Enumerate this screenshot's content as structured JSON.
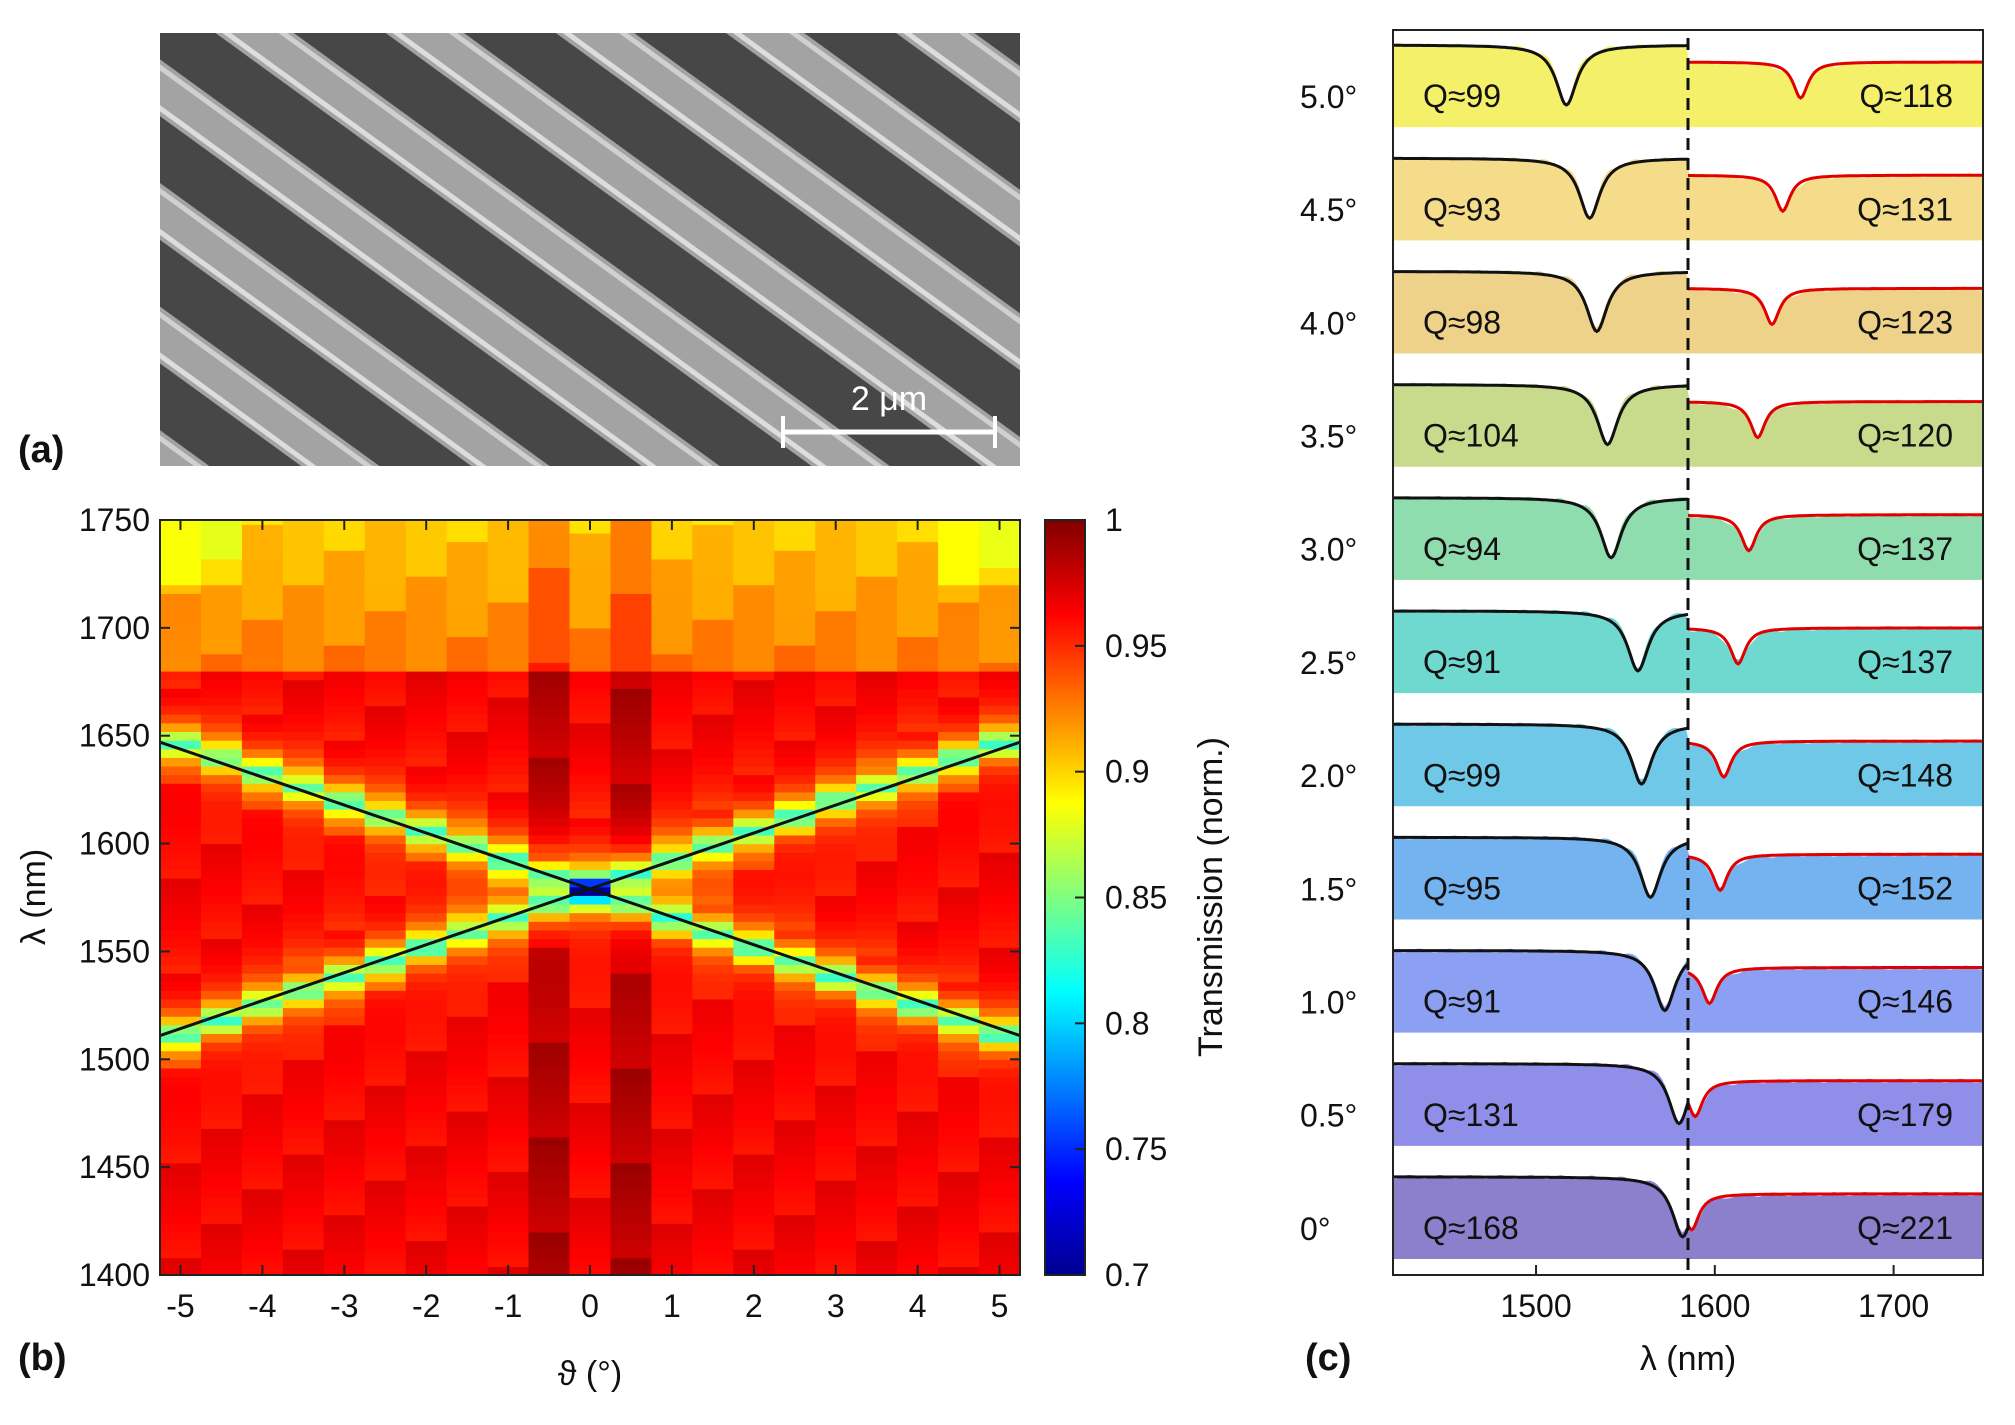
{
  "figure": {
    "panel_labels": [
      "(a)",
      "(b)",
      "(c)"
    ]
  },
  "sem": {
    "scalebar_label": "2 μm"
  },
  "chart_data": [
    {
      "id": "b",
      "type": "heatmap",
      "title": "",
      "xlabel": "ϑ (°)",
      "ylabel": "λ (nm)",
      "xlim": [
        -5.25,
        5.25
      ],
      "ylim": [
        1400,
        1750
      ],
      "x_ticks": [
        -5,
        -4,
        -3,
        -2,
        -1,
        0,
        1,
        2,
        3,
        4,
        5
      ],
      "y_ticks": [
        1400,
        1450,
        1500,
        1550,
        1600,
        1650,
        1700,
        1750
      ],
      "angles_deg": [
        -5.0,
        -4.5,
        -4.0,
        -3.5,
        -3.0,
        -2.5,
        -2.0,
        -1.5,
        -1.0,
        -0.5,
        0.0,
        0.5,
        1.0,
        1.5,
        2.0,
        2.5,
        3.0,
        3.5,
        4.0,
        4.5,
        5.0
      ],
      "resonance_model": {
        "center_nm": 1579,
        "slope_nm_per_deg": 13.5,
        "linewidth_nm": 6,
        "depth": 0.13
      },
      "fit_lines": [
        {
          "name": "upper branch",
          "x": [
            -5.25,
            5.25
          ],
          "y": [
            1511,
            1647
          ]
        },
        {
          "name": "lower branch",
          "x": [
            -5.25,
            5.25
          ],
          "y": [
            1647,
            1511
          ]
        }
      ],
      "colorbar": {
        "label": "Transmission (norm.)",
        "min": 0.7,
        "max": 1.0,
        "ticks": [
          0.7,
          0.75,
          0.8,
          0.85,
          0.9,
          0.95,
          1.0
        ],
        "tick_labels": [
          "0.7",
          "0.75",
          "0.8",
          "0.85",
          "0.9",
          "0.95",
          "1"
        ]
      }
    },
    {
      "id": "c",
      "type": "line",
      "title": "",
      "xlabel": "λ (nm)",
      "xlim": [
        1420,
        1750
      ],
      "x_ticks": [
        1500,
        1600,
        1700
      ],
      "divider_nm": 1585,
      "series": [
        {
          "angle": "5.0°",
          "color": "#f5f06a",
          "q_left": "Q≈99",
          "q_right": "Q≈118",
          "dip_left": 1517,
          "dip_right": 1648
        },
        {
          "angle": "4.5°",
          "color": "#f5dc8a",
          "q_left": "Q≈93",
          "q_right": "Q≈131",
          "dip_left": 1530,
          "dip_right": 1638
        },
        {
          "angle": "4.0°",
          "color": "#eed28a",
          "q_left": "Q≈98",
          "q_right": "Q≈123",
          "dip_left": 1534,
          "dip_right": 1632
        },
        {
          "angle": "3.5°",
          "color": "#c8da8c",
          "q_left": "Q≈104",
          "q_right": "Q≈120",
          "dip_left": 1540,
          "dip_right": 1624
        },
        {
          "angle": "3.0°",
          "color": "#8fdcae",
          "q_left": "Q≈94",
          "q_right": "Q≈137",
          "dip_left": 1542,
          "dip_right": 1619
        },
        {
          "angle": "2.5°",
          "color": "#6fd8cf",
          "q_left": "Q≈91",
          "q_right": "Q≈137",
          "dip_left": 1557,
          "dip_right": 1613
        },
        {
          "angle": "2.0°",
          "color": "#6fc8e8",
          "q_left": "Q≈99",
          "q_right": "Q≈148",
          "dip_left": 1559,
          "dip_right": 1605
        },
        {
          "angle": "1.5°",
          "color": "#75b2f0",
          "q_left": "Q≈95",
          "q_right": "Q≈152",
          "dip_left": 1564,
          "dip_right": 1603
        },
        {
          "angle": "1.0°",
          "color": "#8ba0f2",
          "q_left": "Q≈91",
          "q_right": "Q≈146",
          "dip_left": 1572,
          "dip_right": 1597
        },
        {
          "angle": "0.5°",
          "color": "#8f8ee8",
          "q_left": "Q≈131",
          "q_right": "Q≈179",
          "dip_left": 1580,
          "dip_right": 1589
        },
        {
          "angle": "0°",
          "color": "#8c7fcc",
          "q_left": "Q≈168",
          "q_right": "Q≈221",
          "dip_left": 1582,
          "dip_right": 1587
        }
      ]
    }
  ]
}
